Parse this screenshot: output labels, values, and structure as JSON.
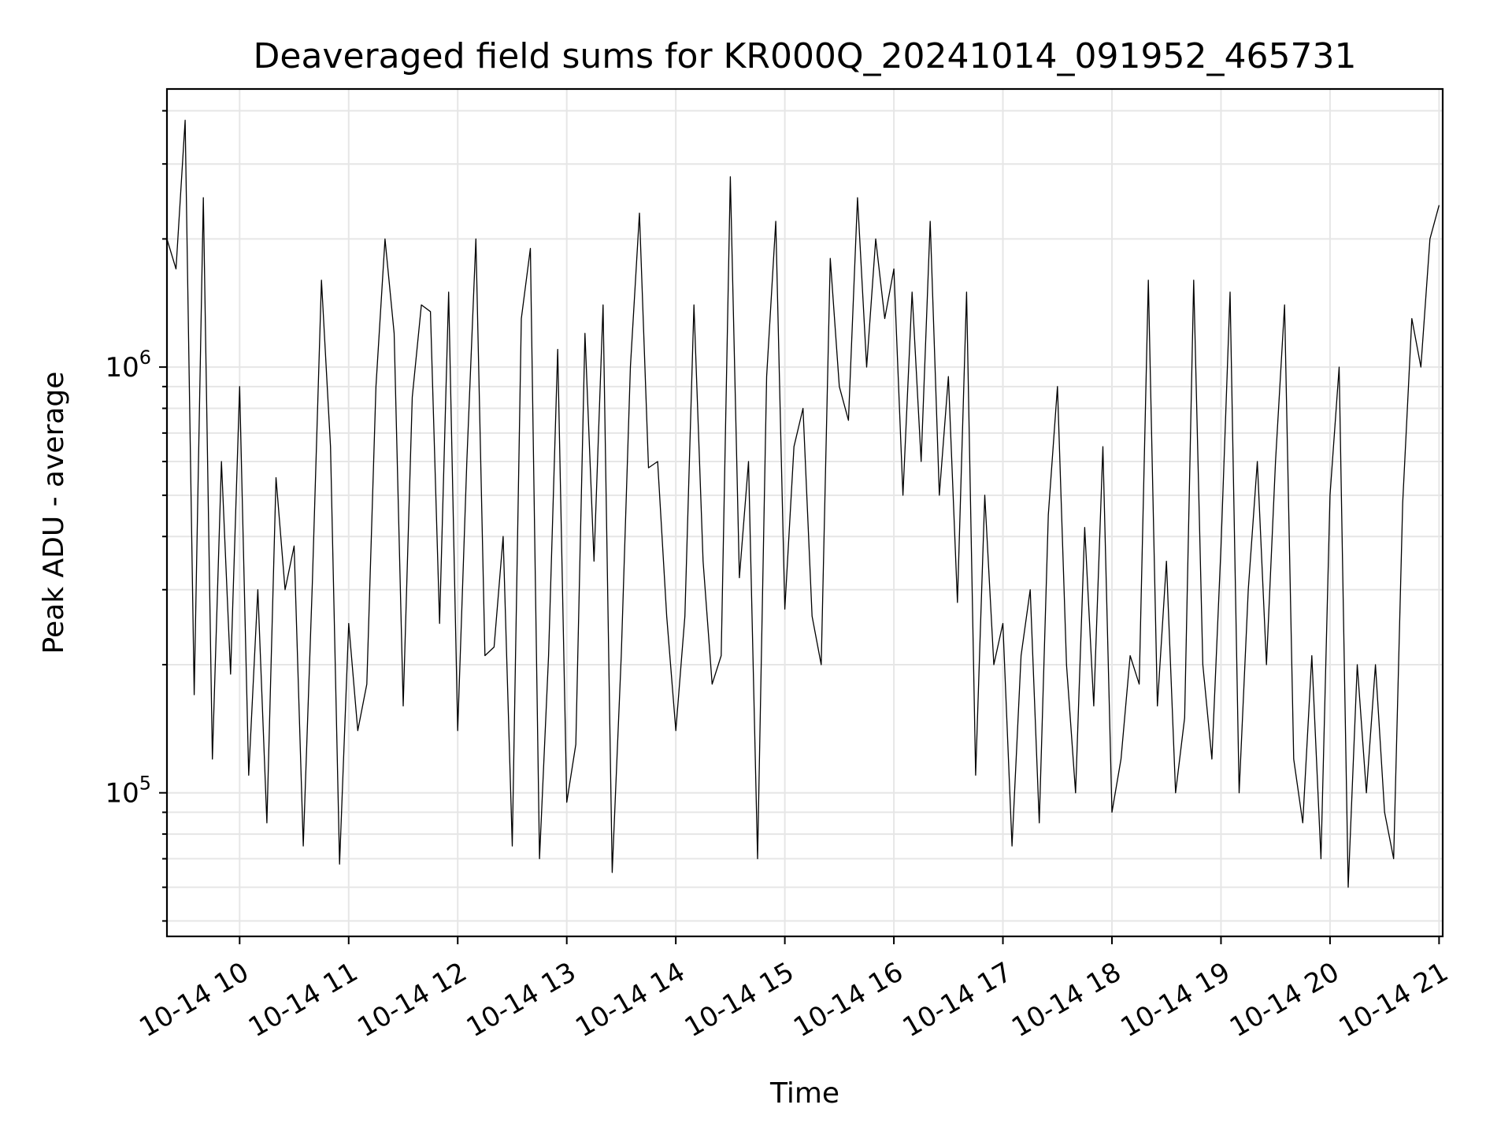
{
  "chart_data": {
    "type": "line",
    "title": "Deaveraged field sums for KR000Q_20241014_091952_465731",
    "xlabel": "Time",
    "ylabel": "Peak ADU - average",
    "x_scale": "time",
    "y_scale": "log",
    "xlim": [
      "2024-10-14 09:20",
      "2024-10-14 21:02"
    ],
    "ylim": [
      46000,
      4500000
    ],
    "x_tick_labels": [
      "10-14 10",
      "10-14 11",
      "10-14 12",
      "10-14 13",
      "10-14 14",
      "10-14 15",
      "10-14 16",
      "10-14 17",
      "10-14 18",
      "10-14 19",
      "10-14 20",
      "10-14 21"
    ],
    "x_ticks": [
      "2024-10-14 10:00",
      "2024-10-14 11:00",
      "2024-10-14 12:00",
      "2024-10-14 13:00",
      "2024-10-14 14:00",
      "2024-10-14 15:00",
      "2024-10-14 16:00",
      "2024-10-14 17:00",
      "2024-10-14 18:00",
      "2024-10-14 19:00",
      "2024-10-14 20:00",
      "2024-10-14 21:00"
    ],
    "y_tick_labels": [
      {
        "value": 100000,
        "base": "10",
        "exp": "5"
      },
      {
        "value": 1000000,
        "base": "10",
        "exp": "6"
      }
    ],
    "grid": true,
    "series": [
      {
        "color": "#000000",
        "x": [
          "2024-10-14 09:20",
          "2024-10-14 09:25",
          "2024-10-14 09:30",
          "2024-10-14 09:35",
          "2024-10-14 09:40",
          "2024-10-14 09:45",
          "2024-10-14 09:50",
          "2024-10-14 09:55",
          "2024-10-14 10:00",
          "2024-10-14 10:05",
          "2024-10-14 10:10",
          "2024-10-14 10:15",
          "2024-10-14 10:20",
          "2024-10-14 10:25",
          "2024-10-14 10:30",
          "2024-10-14 10:35",
          "2024-10-14 10:40",
          "2024-10-14 10:45",
          "2024-10-14 10:50",
          "2024-10-14 10:55",
          "2024-10-14 11:00",
          "2024-10-14 11:05",
          "2024-10-14 11:10",
          "2024-10-14 11:15",
          "2024-10-14 11:20",
          "2024-10-14 11:25",
          "2024-10-14 11:30",
          "2024-10-14 11:35",
          "2024-10-14 11:40",
          "2024-10-14 11:45",
          "2024-10-14 11:50",
          "2024-10-14 11:55",
          "2024-10-14 12:00",
          "2024-10-14 12:05",
          "2024-10-14 12:10",
          "2024-10-14 12:15",
          "2024-10-14 12:20",
          "2024-10-14 12:25",
          "2024-10-14 12:30",
          "2024-10-14 12:35",
          "2024-10-14 12:40",
          "2024-10-14 12:45",
          "2024-10-14 12:50",
          "2024-10-14 12:55",
          "2024-10-14 13:00",
          "2024-10-14 13:05",
          "2024-10-14 13:10",
          "2024-10-14 13:15",
          "2024-10-14 13:20",
          "2024-10-14 13:25",
          "2024-10-14 13:30",
          "2024-10-14 13:35",
          "2024-10-14 13:40",
          "2024-10-14 13:45",
          "2024-10-14 13:50",
          "2024-10-14 13:55",
          "2024-10-14 14:00",
          "2024-10-14 14:05",
          "2024-10-14 14:10",
          "2024-10-14 14:15",
          "2024-10-14 14:20",
          "2024-10-14 14:25",
          "2024-10-14 14:30",
          "2024-10-14 14:35",
          "2024-10-14 14:40",
          "2024-10-14 14:45",
          "2024-10-14 14:50",
          "2024-10-14 14:55",
          "2024-10-14 15:00",
          "2024-10-14 15:05",
          "2024-10-14 15:10",
          "2024-10-14 15:15",
          "2024-10-14 15:20",
          "2024-10-14 15:25",
          "2024-10-14 15:30",
          "2024-10-14 15:35",
          "2024-10-14 15:40",
          "2024-10-14 15:45",
          "2024-10-14 15:50",
          "2024-10-14 15:55",
          "2024-10-14 16:00",
          "2024-10-14 16:05",
          "2024-10-14 16:10",
          "2024-10-14 16:15",
          "2024-10-14 16:20",
          "2024-10-14 16:25",
          "2024-10-14 16:30",
          "2024-10-14 16:35",
          "2024-10-14 16:40",
          "2024-10-14 16:45",
          "2024-10-14 16:50",
          "2024-10-14 16:55",
          "2024-10-14 17:00",
          "2024-10-14 17:05",
          "2024-10-14 17:10",
          "2024-10-14 17:15",
          "2024-10-14 17:20",
          "2024-10-14 17:25",
          "2024-10-14 17:30",
          "2024-10-14 17:35",
          "2024-10-14 17:40",
          "2024-10-14 17:45",
          "2024-10-14 17:50",
          "2024-10-14 17:55",
          "2024-10-14 18:00",
          "2024-10-14 18:05",
          "2024-10-14 18:10",
          "2024-10-14 18:15",
          "2024-10-14 18:20",
          "2024-10-14 18:25",
          "2024-10-14 18:30",
          "2024-10-14 18:35",
          "2024-10-14 18:40",
          "2024-10-14 18:45",
          "2024-10-14 18:50",
          "2024-10-14 18:55",
          "2024-10-14 19:00",
          "2024-10-14 19:05",
          "2024-10-14 19:10",
          "2024-10-14 19:15",
          "2024-10-14 19:20",
          "2024-10-14 19:25",
          "2024-10-14 19:30",
          "2024-10-14 19:35",
          "2024-10-14 19:40",
          "2024-10-14 19:45",
          "2024-10-14 19:50",
          "2024-10-14 19:55",
          "2024-10-14 20:00",
          "2024-10-14 20:05",
          "2024-10-14 20:10",
          "2024-10-14 20:15",
          "2024-10-14 20:20",
          "2024-10-14 20:25",
          "2024-10-14 20:30",
          "2024-10-14 20:35",
          "2024-10-14 20:40",
          "2024-10-14 20:45",
          "2024-10-14 20:50",
          "2024-10-14 20:55",
          "2024-10-14 21:00"
        ],
        "y": [
          2000000,
          1700000,
          3800000,
          170000,
          2500000,
          120000,
          600000,
          190000,
          900000,
          110000,
          300000,
          85000,
          550000,
          300000,
          380000,
          75000,
          310000,
          1600000,
          650000,
          68000,
          250000,
          140000,
          180000,
          900000,
          2000000,
          1200000,
          160000,
          850000,
          1400000,
          1350000,
          250000,
          1500000,
          140000,
          600000,
          2000000,
          210000,
          220000,
          400000,
          75000,
          1300000,
          1900000,
          70000,
          210000,
          1100000,
          95000,
          130000,
          1200000,
          350000,
          1400000,
          65000,
          210000,
          1000000,
          2300000,
          580000,
          600000,
          260000,
          140000,
          260000,
          1400000,
          350000,
          180000,
          210000,
          2800000,
          320000,
          600000,
          70000,
          950000,
          2200000,
          270000,
          650000,
          800000,
          260000,
          200000,
          1800000,
          900000,
          750000,
          2500000,
          1000000,
          2000000,
          1300000,
          1700000,
          500000,
          1500000,
          600000,
          2200000,
          500000,
          950000,
          280000,
          1500000,
          110000,
          500000,
          200000,
          250000,
          75000,
          210000,
          300000,
          85000,
          450000,
          900000,
          200000,
          100000,
          420000,
          160000,
          650000,
          90000,
          120000,
          210000,
          180000,
          1600000,
          160000,
          350000,
          100000,
          150000,
          1600000,
          200000,
          120000,
          380000,
          1500000,
          100000,
          300000,
          600000,
          200000,
          600000,
          1400000,
          120000,
          85000,
          210000,
          70000,
          500000,
          1000000,
          60000,
          200000,
          100000,
          200000,
          90000,
          70000,
          480000,
          1300000,
          1000000,
          2000000,
          2400000
        ]
      }
    ]
  }
}
